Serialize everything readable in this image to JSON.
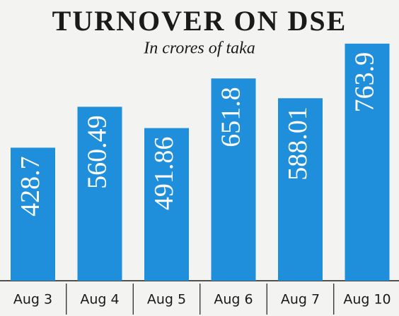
{
  "chart_data": {
    "type": "bar",
    "title": "TURNOVER ON DSE",
    "subtitle": "In crores of taka",
    "categories": [
      "Aug 3",
      "Aug 4",
      "Aug 5",
      "Aug 6",
      "Aug 7",
      "Aug 10"
    ],
    "values": [
      428.7,
      560.49,
      491.86,
      651.8,
      588.01,
      763.9
    ],
    "color": "#1f8fdc"
  }
}
